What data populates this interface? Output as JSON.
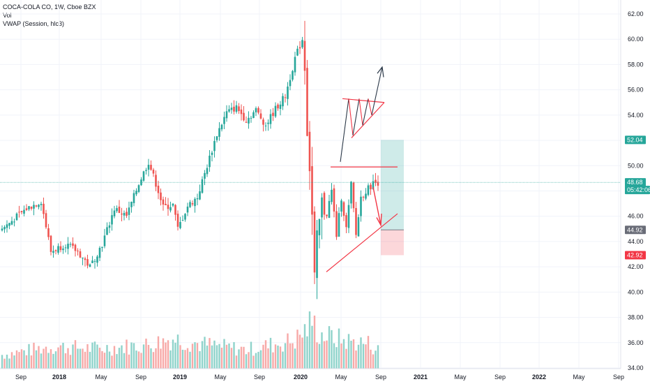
{
  "legend": {
    "symbol": "COCA-COLA CO, 1W, Cboe BZX",
    "vol": "Vol",
    "vwap": "VWAP (Session, hlc3)"
  },
  "colors": {
    "up": "#26a69a",
    "down": "#ef5350",
    "vol_up": "#8fd3cb",
    "vol_down": "#f7a9a7",
    "grid": "#f0f3fa",
    "axis_text": "#131722",
    "price_line": "#26a69a",
    "drawing_dark": "#2a3747",
    "drawing_red": "#f23645",
    "long_profit": "rgba(38,166,154,0.22)",
    "long_loss": "rgba(242,54,69,0.20)",
    "neutral_label": "#6a6d78"
  },
  "chart_data": {
    "type": "candlestick",
    "title": "COCA-COLA CO, 1W, Cboe BZX",
    "x_ticks": [
      "Sep",
      "2018",
      "May",
      "Sep",
      "2019",
      "May",
      "Sep",
      "2020",
      "May",
      "Sep",
      "2021",
      "May",
      "Sep",
      "2022",
      "May",
      "Sep"
    ],
    "y_ticks": [
      "62.00",
      "60.00",
      "58.00",
      "56.00",
      "54.00",
      "52.00",
      "50.00",
      "48.00",
      "46.00",
      "44.00",
      "42.00",
      "40.00",
      "38.00",
      "36.00",
      "34.00"
    ],
    "ylim": [
      34,
      62.8
    ],
    "price_tags": [
      {
        "label": "52.04",
        "value": 52.04,
        "kind": "target"
      },
      {
        "label": "48.68",
        "value": 48.68,
        "kind": "last"
      },
      {
        "label": "05:42:06",
        "value": 48.68,
        "kind": "countdown"
      },
      {
        "label": "44.92",
        "value": 44.92,
        "kind": "entry"
      },
      {
        "label": "42.92",
        "value": 42.92,
        "kind": "stop"
      }
    ],
    "price_path": [
      {
        "week": 0,
        "price": 45.0
      },
      {
        "week": 10,
        "price": 46.6
      },
      {
        "week": 16,
        "price": 47.2
      },
      {
        "week": 17,
        "price": 46.2
      },
      {
        "week": 20,
        "price": 43.2
      },
      {
        "week": 26,
        "price": 43.8
      },
      {
        "week": 31,
        "price": 43.2
      },
      {
        "week": 36,
        "price": 42.0
      },
      {
        "week": 41,
        "price": 43.8
      },
      {
        "week": 46,
        "price": 46.6
      },
      {
        "week": 51,
        "price": 46.0
      },
      {
        "week": 56,
        "price": 48.6
      },
      {
        "week": 60,
        "price": 50.3
      },
      {
        "week": 64,
        "price": 48.0
      },
      {
        "week": 66,
        "price": 46.7
      },
      {
        "week": 70,
        "price": 46.9
      },
      {
        "week": 72,
        "price": 45.0
      },
      {
        "week": 76,
        "price": 46.8
      },
      {
        "week": 80,
        "price": 47.5
      },
      {
        "week": 84,
        "price": 50.0
      },
      {
        "week": 88,
        "price": 52.5
      },
      {
        "week": 92,
        "price": 54.2
      },
      {
        "week": 96,
        "price": 54.6
      },
      {
        "week": 100,
        "price": 53.6
      },
      {
        "week": 104,
        "price": 54.4
      },
      {
        "week": 108,
        "price": 53.2
      },
      {
        "week": 112,
        "price": 54.5
      },
      {
        "week": 116,
        "price": 55.5
      },
      {
        "week": 120,
        "price": 58.5
      },
      {
        "week": 123,
        "price": 60.0
      },
      {
        "week": 124,
        "price": 58.0
      },
      {
        "week": 125,
        "price": 53.0
      },
      {
        "week": 126,
        "price": 50.0
      },
      {
        "week": 127,
        "price": 46.0
      },
      {
        "week": 128,
        "price": 41.0
      },
      {
        "week": 129,
        "price": 44.0
      },
      {
        "week": 131,
        "price": 47.0
      },
      {
        "week": 133,
        "price": 46.2
      },
      {
        "week": 135,
        "price": 48.0
      },
      {
        "week": 137,
        "price": 44.5
      },
      {
        "week": 139,
        "price": 47.5
      },
      {
        "week": 141,
        "price": 45.0
      },
      {
        "week": 143,
        "price": 48.5
      },
      {
        "week": 145,
        "price": 44.5
      },
      {
        "week": 147,
        "price": 47.5
      },
      {
        "week": 149,
        "price": 48.0
      },
      {
        "week": 152,
        "price": 48.6
      },
      {
        "week": 154,
        "price": 48.68
      }
    ],
    "volume_scale": "relative, 0-1",
    "volume_path": [
      {
        "week": 0,
        "value": 0.22
      },
      {
        "week": 20,
        "value": 0.35
      },
      {
        "week": 40,
        "value": 0.32
      },
      {
        "week": 60,
        "value": 0.38
      },
      {
        "week": 70,
        "value": 0.48
      },
      {
        "week": 80,
        "value": 0.4
      },
      {
        "week": 100,
        "value": 0.3
      },
      {
        "week": 120,
        "value": 0.45
      },
      {
        "week": 124,
        "value": 0.6
      },
      {
        "week": 127,
        "value": 0.75
      },
      {
        "week": 130,
        "value": 0.55
      },
      {
        "week": 140,
        "value": 0.45
      },
      {
        "week": 150,
        "value": 0.4
      },
      {
        "week": 154,
        "value": 0.3
      }
    ],
    "annotations": {
      "long_position": {
        "entry": 44.92,
        "target": 52.04,
        "stop": 42.92
      },
      "horizontal_resistance": 49.9,
      "ascending_support": {
        "from": 41.6,
        "to": 46.2
      },
      "triangle": {
        "top": 55.3,
        "apex": 53.9
      },
      "up_arrow_target": 57.8
    }
  }
}
